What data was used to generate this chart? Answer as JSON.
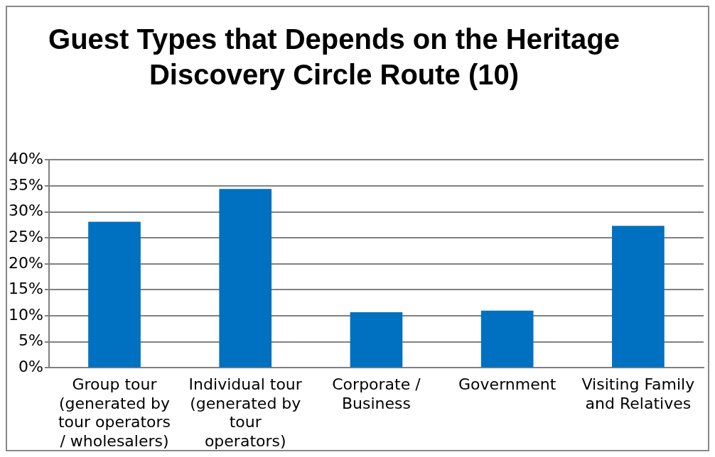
{
  "chart_data": {
    "type": "bar",
    "title": "Guest Types that Depends on the Heritage Discovery Circle Route (10)",
    "categories": [
      "Group tour (generated by tour operators / wholesalers)",
      "Individual tour (generated by tour operators)",
      "Corporate / Business",
      "Government",
      "Visiting Family and Relatives"
    ],
    "values": [
      28.1,
      34.4,
      10.7,
      11.0,
      27.3
    ],
    "color": "#0070c0",
    "ylim": [
      0,
      40
    ],
    "yticks": [
      {
        "value": 0,
        "label": "0%"
      },
      {
        "value": 5,
        "label": "5%"
      },
      {
        "value": 10,
        "label": "10%"
      },
      {
        "value": 15,
        "label": "15%"
      },
      {
        "value": 20,
        "label": "20%"
      },
      {
        "value": 25,
        "label": "25%"
      },
      {
        "value": 30,
        "label": "30%"
      },
      {
        "value": 35,
        "label": "35%"
      },
      {
        "value": 40,
        "label": "40%"
      }
    ],
    "grid": "y",
    "legend": false
  }
}
